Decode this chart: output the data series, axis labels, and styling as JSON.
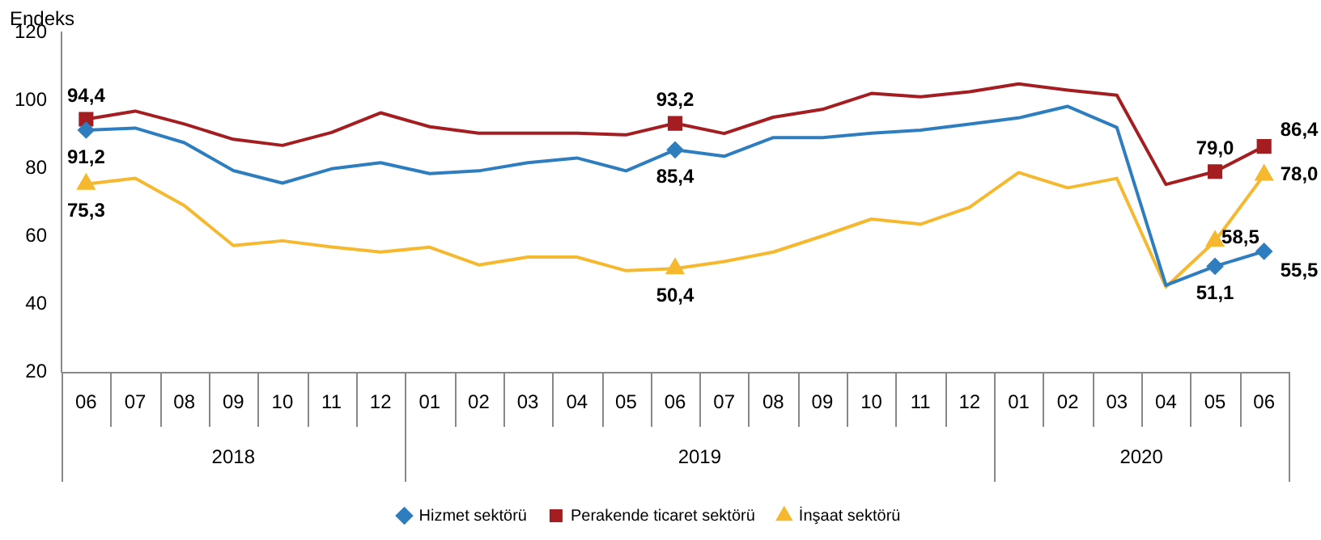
{
  "chart_data": {
    "type": "line",
    "ylabel": "Endeks",
    "ylim": [
      20,
      120
    ],
    "yticks": [
      20,
      40,
      60,
      80,
      100,
      120
    ],
    "grid": false,
    "legend": "bottom",
    "line_style": "solid",
    "categories": [
      "06",
      "07",
      "08",
      "09",
      "10",
      "11",
      "12",
      "01",
      "02",
      "03",
      "04",
      "05",
      "06",
      "07",
      "08",
      "09",
      "10",
      "11",
      "12",
      "01",
      "02",
      "03",
      "04",
      "05",
      "06"
    ],
    "annotations": [
      "2018",
      "2019",
      "2020"
    ],
    "series": [
      {
        "name": "Hizmet sektörü",
        "color": "#2e7ebf",
        "values": [
          91.2,
          91.8,
          87.5,
          79.3,
          75.6,
          79.8,
          81.6,
          78.4,
          79.2,
          81.6,
          83,
          79.2,
          85.4,
          83.5,
          89,
          89,
          90.3,
          91.2,
          93,
          94.8,
          98.2,
          92,
          45.5,
          51.1,
          55.5
        ],
        "value_labels": [
          "91,2",
          null,
          null,
          null,
          null,
          null,
          null,
          null,
          null,
          null,
          null,
          null,
          "85,4",
          null,
          null,
          null,
          null,
          null,
          null,
          null,
          null,
          null,
          null,
          "51,1",
          "55,5"
        ]
      },
      {
        "name": "Perakende ticaret sektörü",
        "color": "#a31d21",
        "values": [
          94.4,
          96.8,
          93,
          88.5,
          86.7,
          90.5,
          96.3,
          92.2,
          90.3,
          90.3,
          90.3,
          89.8,
          93.2,
          90.2,
          95,
          97.3,
          102,
          101,
          102.5,
          104.8,
          103,
          101.5,
          75.2,
          79.0,
          86.4
        ],
        "value_labels": [
          "94,4",
          null,
          null,
          null,
          null,
          null,
          null,
          null,
          null,
          null,
          null,
          null,
          "93,2",
          null,
          null,
          null,
          null,
          null,
          null,
          null,
          null,
          null,
          null,
          "79,0",
          "86,4"
        ]
      },
      {
        "name": "İnşaat sektörü",
        "color": "#f5b82e",
        "values": [
          75.3,
          77,
          69,
          57.2,
          58.6,
          56.8,
          55.3,
          56.7,
          51.5,
          53.8,
          53.8,
          49.8,
          50.4,
          52.5,
          55.3,
          60,
          65,
          63.5,
          68.5,
          78.7,
          74.2,
          77,
          45,
          58.5,
          78.0
        ],
        "value_labels": [
          "75,3",
          null,
          null,
          null,
          null,
          null,
          null,
          null,
          null,
          null,
          null,
          null,
          "50,4",
          null,
          null,
          null,
          null,
          null,
          null,
          null,
          null,
          null,
          null,
          "58,5",
          "78,0"
        ]
      }
    ]
  }
}
